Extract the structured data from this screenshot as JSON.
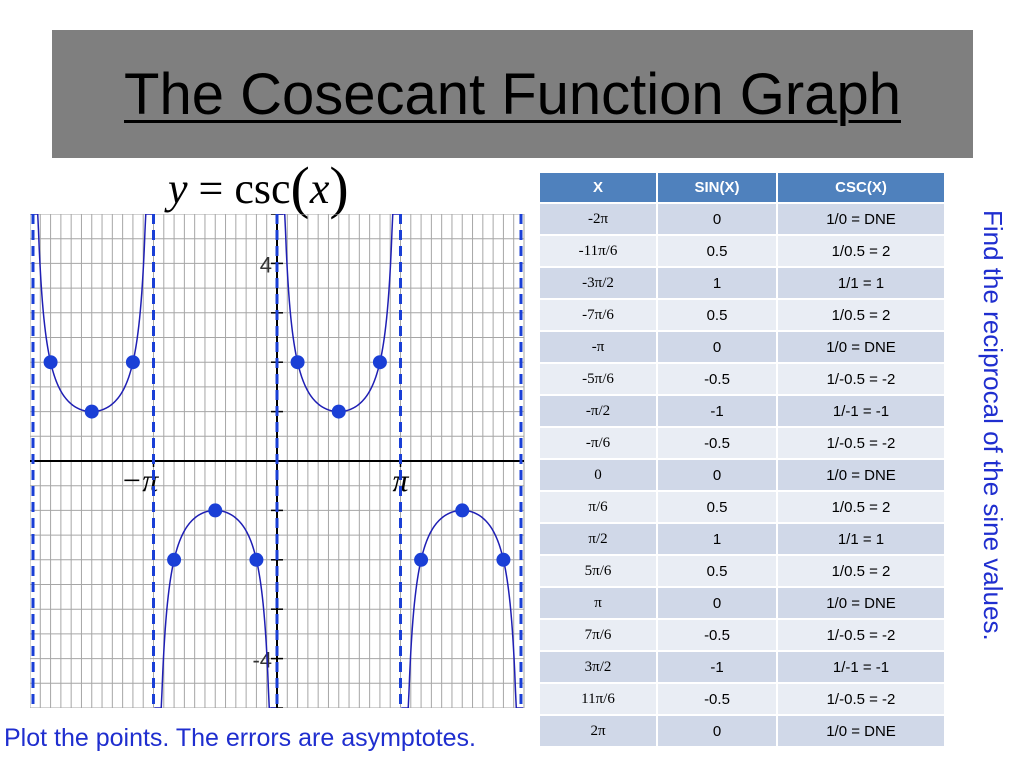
{
  "slide": {
    "title": "The Cosecant Function Graph",
    "equation": {
      "lhs": "y",
      "eq": "=",
      "func": "csc",
      "open": "(",
      "arg": "x",
      "close": ")"
    },
    "side_note": "Find the reciprocal of the sine values.",
    "footer_note": "Plot the points. The errors are asymptotes."
  },
  "colors": {
    "title_bar": "#7f7f7f",
    "curve": "#1f1fb4",
    "asymptote": "#1a3fd6",
    "point": "#1a3fd6",
    "table_header": "#4f81bd",
    "note_text": "#1f2ecf"
  },
  "table": {
    "headers": [
      "X",
      "SIN(X)",
      "CSC(X)"
    ],
    "rows": [
      [
        "-2π",
        "0",
        "1/0 = DNE"
      ],
      [
        "-11π/6",
        "0.5",
        "1/0.5 = 2"
      ],
      [
        "-3π/2",
        "1",
        "1/1 = 1"
      ],
      [
        "-7π/6",
        "0.5",
        "1/0.5 = 2"
      ],
      [
        "-π",
        "0",
        "1/0 = DNE"
      ],
      [
        "-5π/6",
        "-0.5",
        "1/-0.5 = -2"
      ],
      [
        "-π/2",
        "-1",
        "1/-1 = -1"
      ],
      [
        "-π/6",
        "-0.5",
        "1/-0.5 = -2"
      ],
      [
        "0",
        "0",
        "1/0 = DNE"
      ],
      [
        "π/6",
        "0.5",
        "1/0.5 = 2"
      ],
      [
        "π/2",
        "1",
        "1/1 = 1"
      ],
      [
        "5π/6",
        "0.5",
        "1/0.5 = 2"
      ],
      [
        "π",
        "0",
        "1/0 = DNE"
      ],
      [
        "7π/6",
        "-0.5",
        "1/-0.5 = -2"
      ],
      [
        "3π/2",
        "-1",
        "1/-1 = -1"
      ],
      [
        "11π/6",
        "-0.5",
        "1/-0.5 = -2"
      ],
      [
        "2π",
        "0",
        "1/0 = DNE"
      ]
    ]
  },
  "chart_data": {
    "type": "line",
    "function": "csc",
    "x_tick_labels": [
      "−π",
      "π"
    ],
    "y_tick_labels": [
      "4",
      "-4"
    ],
    "xlim": [
      -6.2832,
      6.2832
    ],
    "ylim": [
      -5,
      5
    ],
    "grid": true,
    "asymptotes_x": [
      "-2π",
      "-π",
      "0",
      "π",
      "2π"
    ],
    "asymptotes_x_values": [
      -6.2832,
      -3.1416,
      0,
      3.1416,
      6.2832
    ],
    "points": [
      {
        "x": "-11π/6",
        "xv": -5.7596,
        "y": 2
      },
      {
        "x": "-3π/2",
        "xv": -4.7124,
        "y": 1
      },
      {
        "x": "-7π/6",
        "xv": -3.6652,
        "y": 2
      },
      {
        "x": "-5π/6",
        "xv": -2.618,
        "y": -2
      },
      {
        "x": "-π/2",
        "xv": -1.5708,
        "y": -1
      },
      {
        "x": "-π/6",
        "xv": -0.5236,
        "y": -2
      },
      {
        "x": "π/6",
        "xv": 0.5236,
        "y": 2
      },
      {
        "x": "π/2",
        "xv": 1.5708,
        "y": 1
      },
      {
        "x": "5π/6",
        "xv": 2.618,
        "y": 2
      },
      {
        "x": "7π/6",
        "xv": 3.6652,
        "y": -2
      },
      {
        "x": "3π/2",
        "xv": 4.7124,
        "y": -1
      },
      {
        "x": "11π/6",
        "xv": 5.7596,
        "y": -2
      }
    ]
  }
}
